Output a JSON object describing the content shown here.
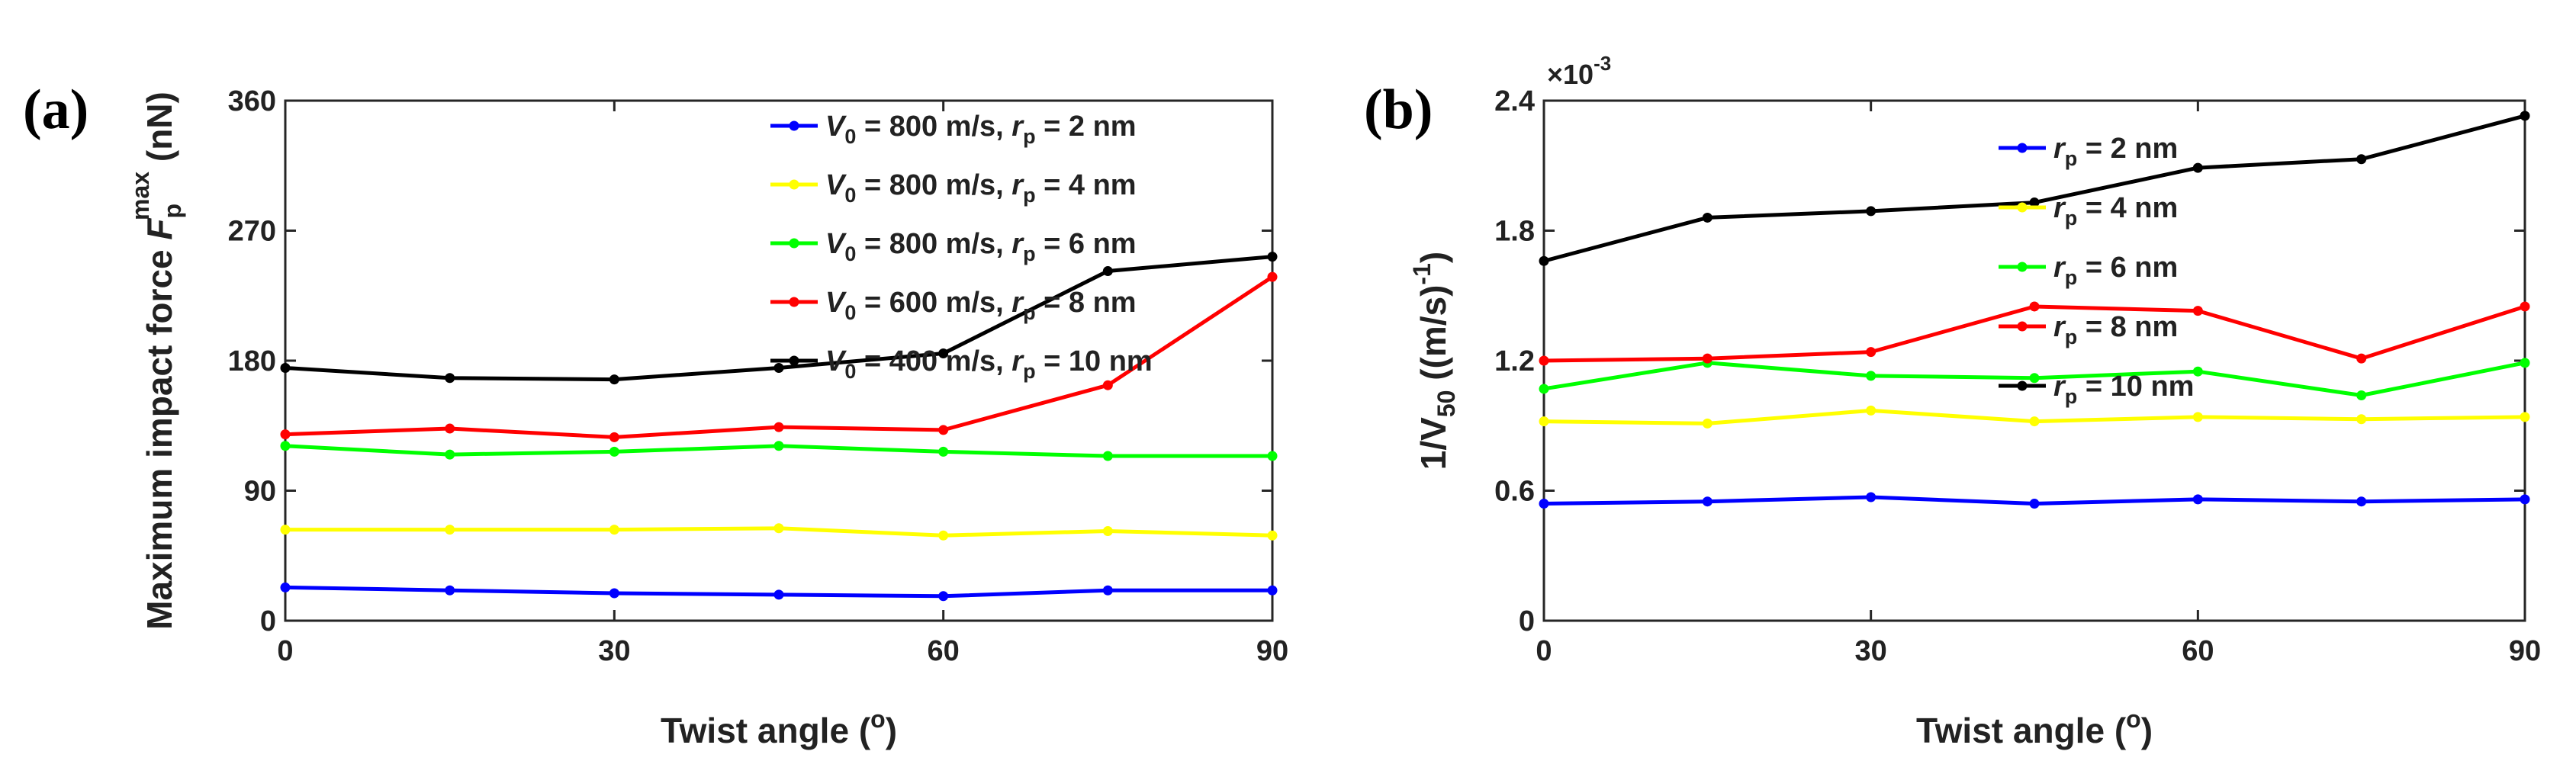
{
  "chart_data": [
    {
      "type": "line",
      "panel_label": "(a)",
      "ylabel": {
        "main": "Maximum impact force ",
        "sym": "F",
        "sub": "p",
        "sup": "max",
        "unit": " (nN)"
      },
      "xlabel": {
        "main": "Twist angle (",
        "sup": "o",
        "end": ")"
      },
      "xlim": [
        0,
        90
      ],
      "ylim": [
        0,
        360
      ],
      "xticks": [
        0,
        30,
        60,
        90
      ],
      "yticks": [
        0,
        90,
        180,
        270,
        360
      ],
      "x": [
        0,
        15,
        30,
        45,
        60,
        75,
        90
      ],
      "grid": false,
      "legend_position": "top-right",
      "series": [
        {
          "name": "V0 = 800 m/s, rp = 2 nm",
          "v0": "800",
          "rp": "2",
          "color": "#0000FF",
          "values": [
            23,
            21,
            19,
            18,
            17,
            21,
            21
          ]
        },
        {
          "name": "V0 = 800 m/s, rp = 4 nm",
          "v0": "800",
          "rp": "4",
          "color": "#FFFF00",
          "values": [
            63,
            63,
            63,
            64,
            59,
            62,
            59
          ]
        },
        {
          "name": "V0 = 800 m/s, rp = 6 nm",
          "v0": "800",
          "rp": "6",
          "color": "#00FF00",
          "values": [
            121,
            115,
            117,
            121,
            117,
            114,
            114
          ]
        },
        {
          "name": "V0 = 600 m/s, rp = 8 nm",
          "v0": "600",
          "rp": "8",
          "color": "#FF0000",
          "values": [
            129,
            133,
            127,
            134,
            132,
            163,
            238
          ]
        },
        {
          "name": "V0 = 400 m/s, rp = 10 nm",
          "v0": "400",
          "rp": "10",
          "color": "#000000",
          "values": [
            175,
            168,
            167,
            175,
            185,
            242,
            252
          ]
        }
      ]
    },
    {
      "type": "line",
      "panel_label": "(b)",
      "ylabel": {
        "main": "1/V",
        "sub": "50",
        "unit": " ((m/s)",
        "sup": "-1",
        "end": ")"
      },
      "xlabel": {
        "main": "Twist angle (",
        "sup": "o",
        "end": ")"
      },
      "scale_note": {
        "base": "×10",
        "exp": "-3"
      },
      "xlim": [
        0,
        90
      ],
      "ylim": [
        0,
        2.4
      ],
      "xticks": [
        0,
        30,
        60,
        90
      ],
      "yticks": [
        0,
        0.6,
        1.2,
        1.8,
        2.4
      ],
      "ytick_labels": [
        "0",
        "0.6",
        "1.2",
        "1.8",
        "2.4"
      ],
      "x": [
        0,
        15,
        30,
        45,
        60,
        75,
        90
      ],
      "grid": false,
      "legend_position": "top-right",
      "series": [
        {
          "name": "rp = 2 nm",
          "rp": "2",
          "color": "#0000FF",
          "values": [
            0.54,
            0.55,
            0.57,
            0.54,
            0.56,
            0.55,
            0.56
          ]
        },
        {
          "name": "rp = 4 nm",
          "rp": "4",
          "color": "#FFFF00",
          "values": [
            0.92,
            0.91,
            0.97,
            0.92,
            0.94,
            0.93,
            0.94
          ]
        },
        {
          "name": "rp = 6 nm",
          "rp": "6",
          "color": "#00FF00",
          "values": [
            1.07,
            1.19,
            1.13,
            1.12,
            1.15,
            1.04,
            1.19
          ]
        },
        {
          "name": "rp = 8 nm",
          "rp": "8",
          "color": "#FF0000",
          "values": [
            1.2,
            1.21,
            1.24,
            1.45,
            1.43,
            1.21,
            1.45
          ]
        },
        {
          "name": "rp = 10 nm",
          "rp": "10",
          "color": "#000000",
          "values": [
            1.66,
            1.86,
            1.89,
            1.93,
            2.09,
            2.13,
            2.33
          ]
        }
      ]
    }
  ]
}
